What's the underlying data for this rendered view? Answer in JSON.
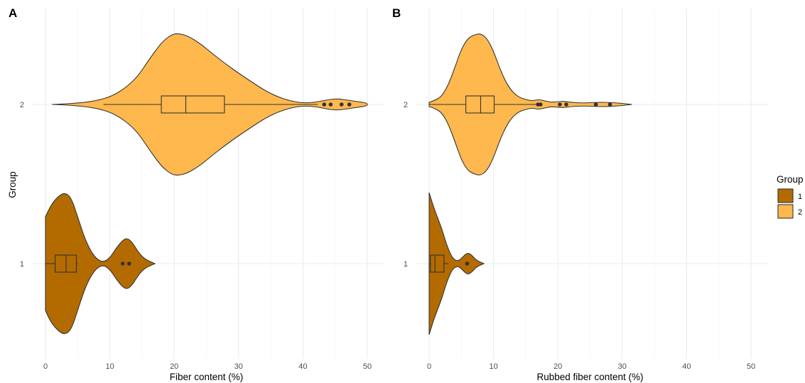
{
  "legend": {
    "title": "Group",
    "items": [
      {
        "label": "1",
        "color": "#B36B00"
      },
      {
        "label": "2",
        "color": "#FFB84D"
      }
    ]
  },
  "y_axis_label": "Group",
  "chart_data": [
    {
      "type": "violin",
      "panel_tag": "A",
      "xlabel": "Fiber content (%)",
      "ylabel": "Group",
      "xlim": [
        0,
        52
      ],
      "xticks": [
        0,
        10,
        20,
        30,
        40,
        50
      ],
      "categories": [
        "1",
        "2"
      ],
      "grid": true,
      "groups": [
        {
          "name": "1",
          "color": "#B36B00",
          "range": [
            0.0,
            17.0
          ],
          "box": {
            "q1": 1.5,
            "median": 3.2,
            "q3": 4.8,
            "whisker_low": 0.0,
            "whisker_high": 5.0
          },
          "outliers": [
            12.0,
            13.0
          ],
          "density": [
            [
              0.0,
              0.66
            ],
            [
              0.8,
              0.82
            ],
            [
              2.0,
              0.95
            ],
            [
              3.0,
              1.0
            ],
            [
              4.0,
              0.93
            ],
            [
              5.0,
              0.66
            ],
            [
              6.0,
              0.38
            ],
            [
              7.0,
              0.18
            ],
            [
              8.0,
              0.06
            ],
            [
              9.0,
              0.02
            ],
            [
              10.0,
              0.08
            ],
            [
              11.0,
              0.22
            ],
            [
              12.0,
              0.33
            ],
            [
              12.7,
              0.36
            ],
            [
              13.5,
              0.3
            ],
            [
              14.5,
              0.15
            ],
            [
              15.5,
              0.06
            ],
            [
              16.5,
              0.02
            ],
            [
              17.0,
              0.0
            ]
          ]
        },
        {
          "name": "2",
          "color": "#FFB84D",
          "range": [
            1.0,
            50.0
          ],
          "box": {
            "q1": 18.0,
            "median": 21.8,
            "q3": 27.8,
            "whisker_low": 9.0,
            "whisker_high": 42.3
          },
          "outliers": [
            43.3,
            44.3,
            46.0,
            47.2
          ],
          "density": [
            [
              1.0,
              0.0
            ],
            [
              4.0,
              0.01
            ],
            [
              8.0,
              0.05
            ],
            [
              11.0,
              0.14
            ],
            [
              14.0,
              0.35
            ],
            [
              16.0,
              0.62
            ],
            [
              18.0,
              0.87
            ],
            [
              19.5,
              0.98
            ],
            [
              20.5,
              1.0
            ],
            [
              22.0,
              0.97
            ],
            [
              24.0,
              0.86
            ],
            [
              26.0,
              0.71
            ],
            [
              28.0,
              0.57
            ],
            [
              30.0,
              0.44
            ],
            [
              32.0,
              0.32
            ],
            [
              34.0,
              0.2
            ],
            [
              36.0,
              0.11
            ],
            [
              38.0,
              0.05
            ],
            [
              40.0,
              0.02
            ],
            [
              42.0,
              0.03
            ],
            [
              44.0,
              0.07
            ],
            [
              45.5,
              0.08
            ],
            [
              47.0,
              0.06
            ],
            [
              48.5,
              0.04
            ],
            [
              50.0,
              0.02
            ]
          ]
        }
      ]
    },
    {
      "type": "violin",
      "panel_tag": "B",
      "xlabel": "Rubbed fiber content (%)",
      "ylabel": "",
      "xlim": [
        0,
        52
      ],
      "xticks": [
        0,
        10,
        20,
        30,
        40,
        50
      ],
      "categories": [
        "1",
        "2"
      ],
      "grid": true,
      "groups": [
        {
          "name": "1",
          "color": "#B36B00",
          "range": [
            0.0,
            8.5
          ],
          "box": {
            "q1": 0.2,
            "median": 0.9,
            "q3": 2.3,
            "whisker_low": 0.0,
            "whisker_high": 3.0
          },
          "outliers": [
            5.9
          ],
          "density": [
            [
              0.0,
              1.0
            ],
            [
              0.5,
              0.85
            ],
            [
              1.0,
              0.72
            ],
            [
              1.5,
              0.6
            ],
            [
              2.0,
              0.48
            ],
            [
              2.5,
              0.33
            ],
            [
              3.0,
              0.2
            ],
            [
              3.5,
              0.1
            ],
            [
              4.0,
              0.05
            ],
            [
              4.5,
              0.04
            ],
            [
              5.0,
              0.07
            ],
            [
              5.5,
              0.12
            ],
            [
              6.0,
              0.15
            ],
            [
              6.5,
              0.13
            ],
            [
              7.0,
              0.08
            ],
            [
              7.5,
              0.04
            ],
            [
              8.0,
              0.02
            ],
            [
              8.5,
              0.0
            ]
          ]
        },
        {
          "name": "2",
          "color": "#FFB84D",
          "range": [
            0.0,
            31.5
          ],
          "box": {
            "q1": 5.7,
            "median": 8.0,
            "q3": 10.1,
            "whisker_low": 0.0,
            "whisker_high": 16.6
          },
          "outliers": [
            16.9,
            17.3,
            20.3,
            21.3,
            25.9,
            28.1
          ],
          "density": [
            [
              0.0,
              0.03
            ],
            [
              1.0,
              0.06
            ],
            [
              2.0,
              0.12
            ],
            [
              3.0,
              0.28
            ],
            [
              4.0,
              0.52
            ],
            [
              5.0,
              0.78
            ],
            [
              6.0,
              0.93
            ],
            [
              7.0,
              0.98
            ],
            [
              8.0,
              1.0
            ],
            [
              9.0,
              0.93
            ],
            [
              10.0,
              0.75
            ],
            [
              11.0,
              0.5
            ],
            [
              12.0,
              0.3
            ],
            [
              13.0,
              0.17
            ],
            [
              14.0,
              0.1
            ],
            [
              15.0,
              0.07
            ],
            [
              16.0,
              0.05
            ],
            [
              17.0,
              0.07
            ],
            [
              18.0,
              0.05
            ],
            [
              19.0,
              0.03
            ],
            [
              20.0,
              0.04
            ],
            [
              21.0,
              0.045
            ],
            [
              22.0,
              0.03
            ],
            [
              24.0,
              0.02
            ],
            [
              26.0,
              0.03
            ],
            [
              28.0,
              0.03
            ],
            [
              30.0,
              0.015
            ],
            [
              31.5,
              0.0
            ]
          ]
        }
      ]
    }
  ]
}
